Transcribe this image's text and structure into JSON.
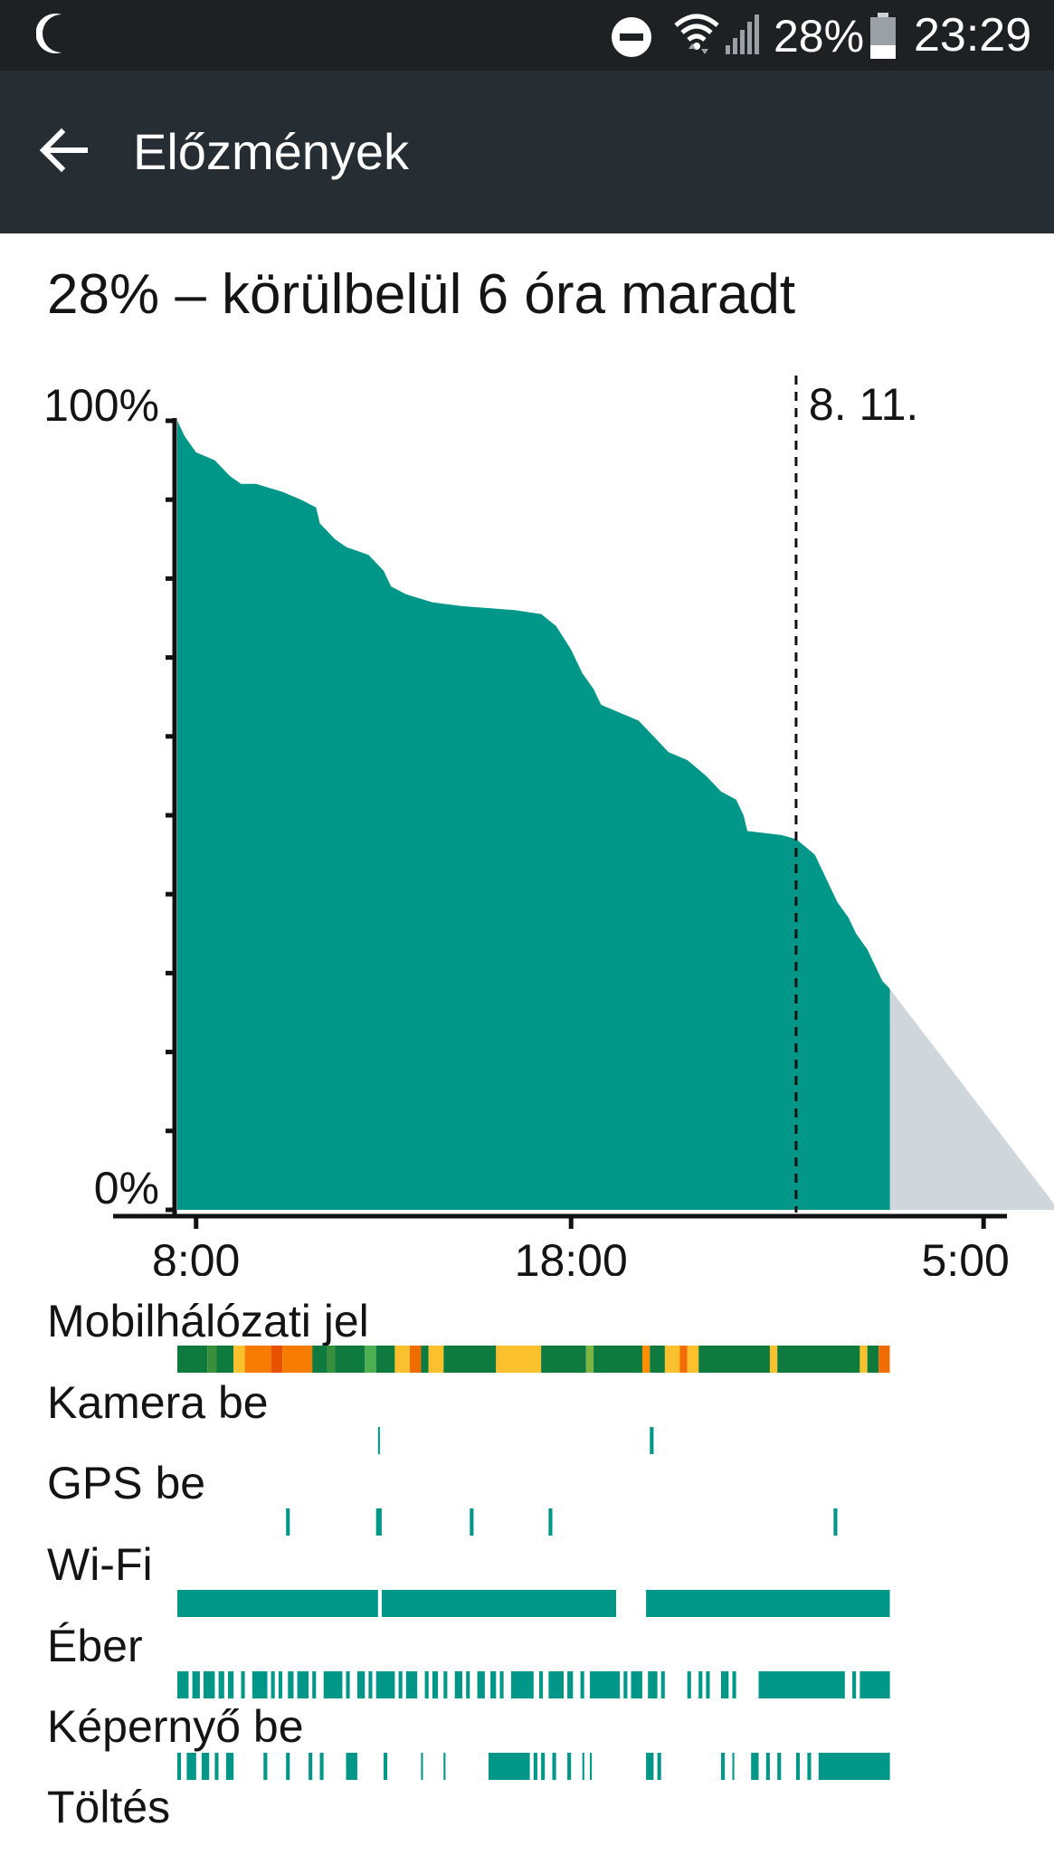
{
  "status_bar": {
    "battery_percent": "28%",
    "clock": "23:29",
    "icons": [
      "moon-icon",
      "do-not-disturb-icon",
      "wifi-icon",
      "cell-signal-icon",
      "battery-icon"
    ]
  },
  "app_bar": {
    "back_icon": "arrow-back-icon",
    "title": "Előzmények"
  },
  "summary": "28% – körülbelül 6 óra maradt",
  "chart_data": {
    "type": "area",
    "y_top_label": "100%",
    "y_bottom_label": "0%",
    "x_tick_labels": [
      "8:00",
      "18:00",
      "5:00"
    ],
    "date_marker_label": "8. 11.",
    "ylim": [
      0,
      100
    ],
    "series": [
      {
        "values": [
          [
            7.5,
            100
          ],
          [
            7.7,
            98
          ],
          [
            8.0,
            96
          ],
          [
            8.5,
            95
          ],
          [
            8.9,
            93
          ],
          [
            9.2,
            92
          ],
          [
            9.6,
            92
          ],
          [
            10.3,
            91
          ],
          [
            10.8,
            90
          ],
          [
            11.2,
            89
          ],
          [
            11.3,
            87
          ],
          [
            11.7,
            85
          ],
          [
            12.0,
            84
          ],
          [
            12.6,
            83
          ],
          [
            13.0,
            81
          ],
          [
            13.2,
            79
          ],
          [
            13.6,
            78
          ],
          [
            14.3,
            77
          ],
          [
            15.1,
            76.5
          ],
          [
            16.5,
            76
          ],
          [
            17.2,
            75.5
          ],
          [
            17.6,
            74
          ],
          [
            18.0,
            71
          ],
          [
            18.3,
            68
          ],
          [
            18.6,
            66
          ],
          [
            18.8,
            64
          ],
          [
            19.3,
            63
          ],
          [
            19.8,
            62
          ],
          [
            20.2,
            60
          ],
          [
            20.6,
            58
          ],
          [
            21.1,
            57
          ],
          [
            21.6,
            55
          ],
          [
            22.0,
            53
          ],
          [
            22.4,
            52
          ],
          [
            22.6,
            50
          ],
          [
            22.7,
            48
          ],
          [
            23.6,
            47.5
          ],
          [
            24.0,
            47
          ],
          [
            24.5,
            45
          ],
          [
            24.8,
            42
          ],
          [
            25.1,
            39
          ],
          [
            25.4,
            37
          ],
          [
            25.6,
            35
          ],
          [
            25.9,
            33
          ],
          [
            26.1,
            31
          ],
          [
            26.3,
            29
          ],
          [
            26.5,
            28
          ]
        ]
      },
      {
        "values": [
          [
            26.5,
            28
          ],
          [
            31.0,
            0
          ]
        ]
      }
    ],
    "grid": false
  },
  "usage_rows": [
    {
      "label": "Mobilhálózati jel",
      "segments": [
        [
          7.5,
          8.3,
          "#0e7a3d"
        ],
        [
          8.3,
          8.55,
          "#3a8f3a"
        ],
        [
          8.55,
          9.0,
          "#0e7a3d"
        ],
        [
          9.0,
          9.3,
          "#fbc02d"
        ],
        [
          9.3,
          10.0,
          "#f57c00"
        ],
        [
          10.0,
          10.3,
          "#e65100"
        ],
        [
          10.3,
          11.1,
          "#f57c00"
        ],
        [
          11.1,
          11.5,
          "#0e7a3d"
        ],
        [
          11.5,
          11.7,
          "#3a8f3a"
        ],
        [
          11.7,
          12.5,
          "#0e7a3d"
        ],
        [
          12.5,
          12.8,
          "#4caf50"
        ],
        [
          12.8,
          13.3,
          "#0e7a3d"
        ],
        [
          13.3,
          13.7,
          "#fbc02d"
        ],
        [
          13.7,
          14.0,
          "#ef6c00"
        ],
        [
          14.0,
          14.2,
          "#0e7a3d"
        ],
        [
          14.2,
          14.6,
          "#fbc02d"
        ],
        [
          14.6,
          16.0,
          "#0e7a3d"
        ],
        [
          16.0,
          17.2,
          "#fbc02d"
        ],
        [
          17.2,
          18.4,
          "#0e7a3d"
        ],
        [
          18.4,
          18.6,
          "#7cb342"
        ],
        [
          18.6,
          19.9,
          "#0e7a3d"
        ],
        [
          19.9,
          20.1,
          "#ff8f00"
        ],
        [
          20.1,
          20.5,
          "#0e7a3d"
        ],
        [
          20.5,
          20.9,
          "#fbc02d"
        ],
        [
          20.9,
          21.1,
          "#ef6c00"
        ],
        [
          21.1,
          21.4,
          "#fbc02d"
        ],
        [
          21.4,
          23.3,
          "#0e7a3d"
        ],
        [
          23.3,
          23.5,
          "#fbc02d"
        ],
        [
          23.5,
          25.7,
          "#0e7a3d"
        ],
        [
          25.7,
          25.9,
          "#fbc02d"
        ],
        [
          25.9,
          26.2,
          "#0e7a3d"
        ],
        [
          26.2,
          26.5,
          "#ef6c00"
        ]
      ]
    },
    {
      "label": "Kamera be",
      "segments": [
        [
          12.85,
          12.9,
          "#009688"
        ],
        [
          20.1,
          20.2,
          "#009688"
        ]
      ]
    },
    {
      "label": "GPS be",
      "segments": [
        [
          10.4,
          10.5,
          "#009688"
        ],
        [
          12.8,
          12.95,
          "#009688"
        ],
        [
          15.3,
          15.4,
          "#009688"
        ],
        [
          17.4,
          17.5,
          "#009688"
        ],
        [
          25.0,
          25.1,
          "#009688"
        ]
      ]
    },
    {
      "label": "Wi-Fi",
      "segments": [
        [
          7.5,
          12.85,
          "#009688"
        ],
        [
          12.95,
          19.2,
          "#009688"
        ],
        [
          20.0,
          26.5,
          "#009688"
        ]
      ]
    },
    {
      "label": "Éber",
      "segments": [
        [
          7.5,
          7.8,
          "#009688"
        ],
        [
          7.9,
          8.1,
          "#009688"
        ],
        [
          8.2,
          8.5,
          "#009688"
        ],
        [
          8.6,
          8.75,
          "#009688"
        ],
        [
          8.85,
          9.0,
          "#009688"
        ],
        [
          9.2,
          9.3,
          "#009688"
        ],
        [
          9.5,
          9.9,
          "#009688"
        ],
        [
          10.0,
          10.1,
          "#009688"
        ],
        [
          10.2,
          10.3,
          "#009688"
        ],
        [
          10.45,
          10.6,
          "#009688"
        ],
        [
          10.7,
          11.0,
          "#009688"
        ],
        [
          11.1,
          11.2,
          "#009688"
        ],
        [
          11.4,
          11.9,
          "#009688"
        ],
        [
          12.0,
          12.1,
          "#009688"
        ],
        [
          12.3,
          12.5,
          "#009688"
        ],
        [
          12.6,
          12.7,
          "#009688"
        ],
        [
          12.8,
          13.3,
          "#009688"
        ],
        [
          13.4,
          13.5,
          "#009688"
        ],
        [
          13.6,
          13.9,
          "#009688"
        ],
        [
          14.1,
          14.2,
          "#009688"
        ],
        [
          14.3,
          14.45,
          "#009688"
        ],
        [
          14.6,
          14.7,
          "#009688"
        ],
        [
          14.9,
          15.1,
          "#009688"
        ],
        [
          15.2,
          15.3,
          "#009688"
        ],
        [
          15.5,
          15.7,
          "#009688"
        ],
        [
          15.85,
          16.0,
          "#009688"
        ],
        [
          16.1,
          16.2,
          "#009688"
        ],
        [
          16.4,
          17.0,
          "#009688"
        ],
        [
          17.15,
          17.25,
          "#009688"
        ],
        [
          17.4,
          17.8,
          "#009688"
        ],
        [
          17.9,
          18.05,
          "#009688"
        ],
        [
          18.25,
          18.35,
          "#009688"
        ],
        [
          18.5,
          19.3,
          "#009688"
        ],
        [
          19.4,
          19.5,
          "#009688"
        ],
        [
          19.6,
          19.9,
          "#009688"
        ],
        [
          20.05,
          20.3,
          "#009688"
        ],
        [
          20.4,
          20.5,
          "#009688"
        ],
        [
          21.1,
          21.2,
          "#009688"
        ],
        [
          21.4,
          21.5,
          "#009688"
        ],
        [
          21.6,
          21.7,
          "#009688"
        ],
        [
          22.0,
          22.2,
          "#009688"
        ],
        [
          22.3,
          22.4,
          "#009688"
        ],
        [
          23.0,
          25.3,
          "#009688"
        ],
        [
          25.5,
          25.6,
          "#009688"
        ],
        [
          25.7,
          26.5,
          "#009688"
        ]
      ]
    },
    {
      "label": "Képernyő be",
      "segments": [
        [
          7.5,
          7.6,
          "#009688"
        ],
        [
          7.75,
          8.0,
          "#009688"
        ],
        [
          8.15,
          8.35,
          "#009688"
        ],
        [
          8.5,
          8.6,
          "#009688"
        ],
        [
          8.8,
          9.0,
          "#009688"
        ],
        [
          9.8,
          9.9,
          "#009688"
        ],
        [
          10.4,
          10.5,
          "#009688"
        ],
        [
          11.0,
          11.1,
          "#009688"
        ],
        [
          11.3,
          11.4,
          "#009688"
        ],
        [
          12.0,
          12.3,
          "#009688"
        ],
        [
          13.0,
          13.1,
          "#009688"
        ],
        [
          14.0,
          14.05,
          "#009688"
        ],
        [
          14.6,
          14.65,
          "#009688"
        ],
        [
          15.8,
          16.9,
          "#009688"
        ],
        [
          17.0,
          17.1,
          "#009688"
        ],
        [
          17.2,
          17.3,
          "#009688"
        ],
        [
          17.5,
          17.6,
          "#009688"
        ],
        [
          17.9,
          18.0,
          "#009688"
        ],
        [
          18.3,
          18.35,
          "#009688"
        ],
        [
          18.5,
          18.55,
          "#009688"
        ],
        [
          20.0,
          20.2,
          "#009688"
        ],
        [
          20.3,
          20.4,
          "#009688"
        ],
        [
          22.0,
          22.1,
          "#009688"
        ],
        [
          22.3,
          22.35,
          "#009688"
        ],
        [
          22.8,
          23.0,
          "#009688"
        ],
        [
          23.2,
          23.3,
          "#009688"
        ],
        [
          23.5,
          23.6,
          "#009688"
        ],
        [
          24.0,
          24.1,
          "#009688"
        ],
        [
          24.3,
          24.4,
          "#009688"
        ],
        [
          24.6,
          26.5,
          "#009688"
        ]
      ]
    },
    {
      "label": "Töltés",
      "segments": []
    }
  ],
  "colors": {
    "accent": "#009688",
    "projection": "#cfd6dc",
    "status_bar": "#1e2124",
    "app_bar": "#262d33"
  }
}
